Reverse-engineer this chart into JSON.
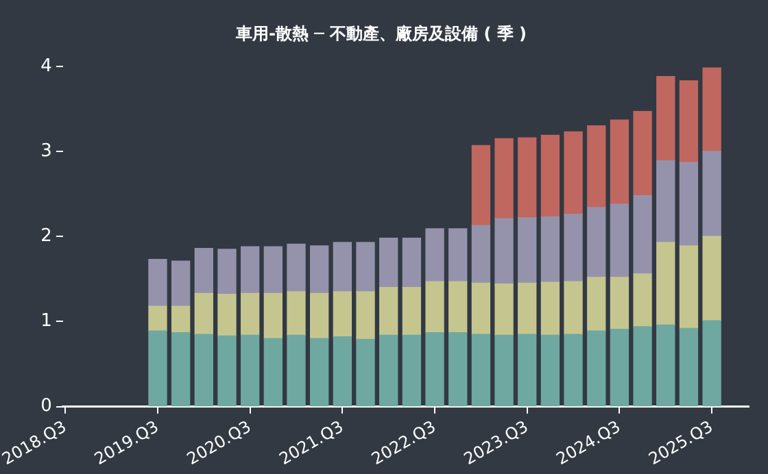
{
  "chart_data": {
    "type": "bar",
    "title": "車用-散熱 ─ 不動產、廠房及設備 ( 季 )",
    "stacked": true,
    "grid": false,
    "legend": false,
    "categories": [
      "2018.Q3",
      null,
      null,
      null,
      "2019.Q3",
      null,
      null,
      null,
      "2020.Q3",
      null,
      null,
      null,
      "2021.Q3",
      null,
      null,
      null,
      "2022.Q3",
      null,
      null,
      null,
      "2023.Q3",
      null,
      null,
      null,
      "2024.Q3",
      null,
      null,
      null,
      "2025.Q3"
    ],
    "ylim": [
      0,
      4
    ],
    "yticks": [
      0,
      1,
      2,
      3,
      4
    ],
    "series": [
      {
        "color": "#6fa8a0",
        "values": [
          null,
          null,
          null,
          null,
          0.89,
          0.87,
          0.85,
          0.83,
          0.84,
          0.8,
          0.84,
          0.8,
          0.82,
          0.79,
          0.84,
          0.84,
          0.87,
          0.87,
          0.85,
          0.84,
          0.85,
          0.84,
          0.85,
          0.89,
          0.91,
          0.94,
          0.96,
          0.92,
          1.01
        ]
      },
      {
        "color": "#c5c68f",
        "values": [
          null,
          null,
          null,
          null,
          0.29,
          0.31,
          0.48,
          0.49,
          0.49,
          0.53,
          0.51,
          0.53,
          0.53,
          0.56,
          0.56,
          0.56,
          0.6,
          0.6,
          0.6,
          0.6,
          0.6,
          0.62,
          0.62,
          0.63,
          0.61,
          0.62,
          0.97,
          0.97,
          0.99
        ]
      },
      {
        "color": "#9593ab",
        "values": [
          null,
          null,
          null,
          null,
          0.55,
          0.53,
          0.53,
          0.53,
          0.55,
          0.55,
          0.56,
          0.56,
          0.58,
          0.58,
          0.58,
          0.58,
          0.62,
          0.62,
          0.68,
          0.77,
          0.77,
          0.77,
          0.79,
          0.82,
          0.86,
          0.92,
          0.96,
          0.98,
          1.0
        ]
      },
      {
        "color": "#c0675f",
        "values": [
          null,
          null,
          null,
          null,
          null,
          null,
          null,
          null,
          null,
          null,
          null,
          null,
          null,
          null,
          null,
          null,
          null,
          null,
          0.94,
          0.94,
          0.94,
          0.96,
          0.97,
          0.96,
          0.99,
          0.99,
          0.99,
          0.96,
          0.98
        ]
      }
    ]
  }
}
